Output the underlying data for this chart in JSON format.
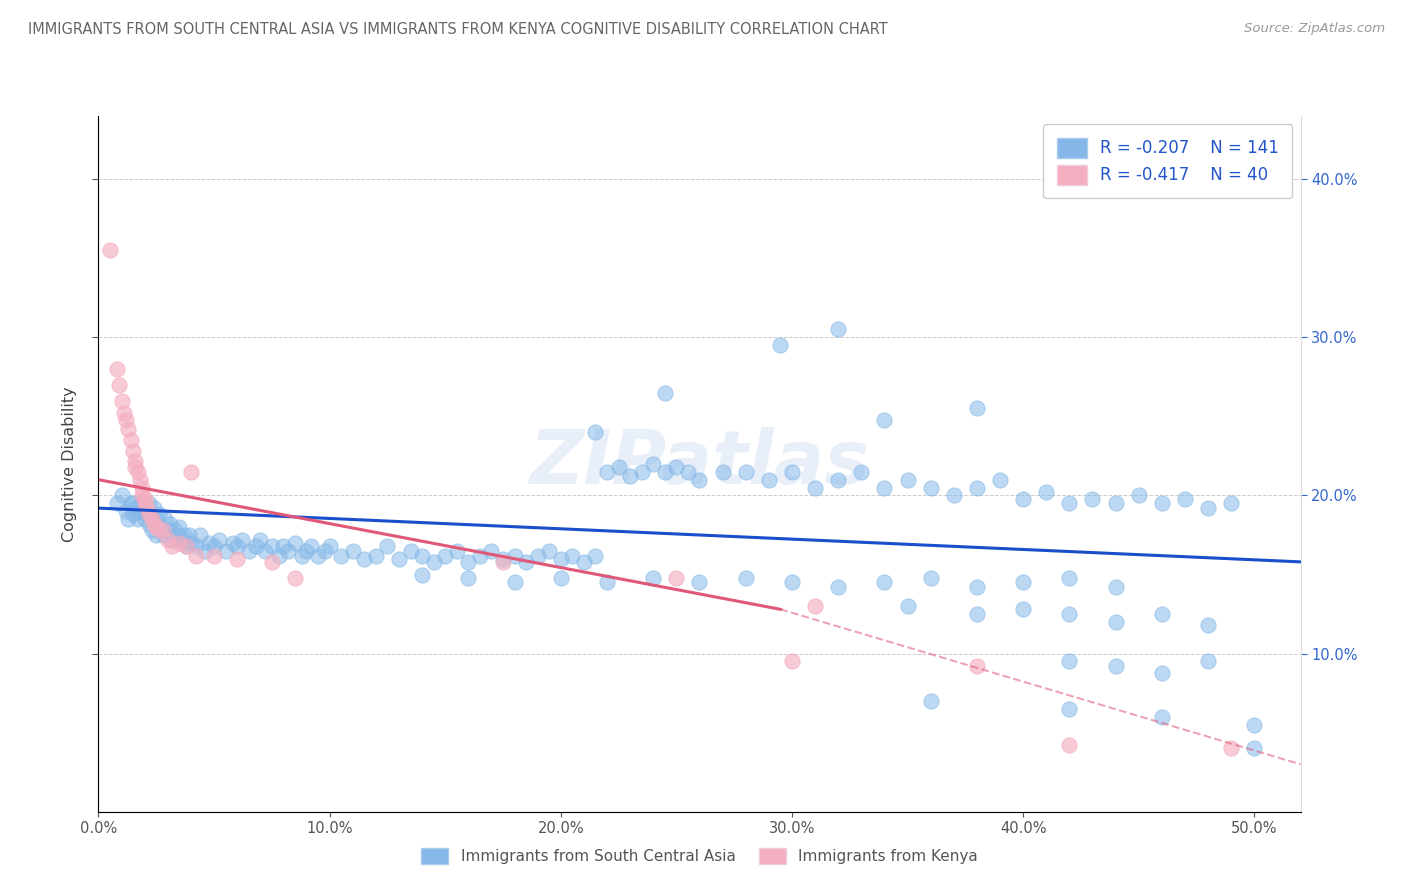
{
  "title": "IMMIGRANTS FROM SOUTH CENTRAL ASIA VS IMMIGRANTS FROM KENYA COGNITIVE DISABILITY CORRELATION CHART",
  "source": "Source: ZipAtlas.com",
  "ylabel": "Cognitive Disability",
  "right_yticks": [
    "40.0%",
    "30.0%",
    "20.0%",
    "10.0%"
  ],
  "right_ytick_vals": [
    0.4,
    0.3,
    0.2,
    0.1
  ],
  "xlim": [
    0.0,
    0.52
  ],
  "ylim": [
    0.0,
    0.44
  ],
  "legend_r1": "R = -0.207",
  "legend_n1": "N = 141",
  "legend_r2": "R = -0.417",
  "legend_n2": "N = 40",
  "blue_color": "#85b8e8",
  "pink_color": "#f4aec0",
  "blue_line_color": "#1a4fcc",
  "pink_line_color": "#e05878",
  "watermark_text": "ZIPatlas",
  "scatter_blue": [
    [
      0.008,
      0.195
    ],
    [
      0.01,
      0.2
    ],
    [
      0.012,
      0.19
    ],
    [
      0.013,
      0.185
    ],
    [
      0.014,
      0.195
    ],
    [
      0.015,
      0.188
    ],
    [
      0.015,
      0.195
    ],
    [
      0.016,
      0.192
    ],
    [
      0.017,
      0.185
    ],
    [
      0.018,
      0.19
    ],
    [
      0.019,
      0.196
    ],
    [
      0.02,
      0.185
    ],
    [
      0.02,
      0.193
    ],
    [
      0.021,
      0.188
    ],
    [
      0.022,
      0.182
    ],
    [
      0.022,
      0.195
    ],
    [
      0.023,
      0.185
    ],
    [
      0.023,
      0.178
    ],
    [
      0.024,
      0.192
    ],
    [
      0.025,
      0.185
    ],
    [
      0.025,
      0.175
    ],
    [
      0.026,
      0.188
    ],
    [
      0.027,
      0.18
    ],
    [
      0.028,
      0.175
    ],
    [
      0.029,
      0.185
    ],
    [
      0.03,
      0.178
    ],
    [
      0.031,
      0.182
    ],
    [
      0.032,
      0.172
    ],
    [
      0.033,
      0.178
    ],
    [
      0.034,
      0.175
    ],
    [
      0.035,
      0.18
    ],
    [
      0.036,
      0.172
    ],
    [
      0.037,
      0.175
    ],
    [
      0.038,
      0.168
    ],
    [
      0.039,
      0.175
    ],
    [
      0.04,
      0.17
    ],
    [
      0.042,
      0.168
    ],
    [
      0.044,
      0.175
    ],
    [
      0.046,
      0.165
    ],
    [
      0.048,
      0.17
    ],
    [
      0.05,
      0.168
    ],
    [
      0.052,
      0.172
    ],
    [
      0.055,
      0.165
    ],
    [
      0.058,
      0.17
    ],
    [
      0.06,
      0.168
    ],
    [
      0.062,
      0.172
    ],
    [
      0.065,
      0.165
    ],
    [
      0.068,
      0.168
    ],
    [
      0.07,
      0.172
    ],
    [
      0.072,
      0.165
    ],
    [
      0.075,
      0.168
    ],
    [
      0.078,
      0.162
    ],
    [
      0.08,
      0.168
    ],
    [
      0.082,
      0.165
    ],
    [
      0.085,
      0.17
    ],
    [
      0.088,
      0.162
    ],
    [
      0.09,
      0.165
    ],
    [
      0.092,
      0.168
    ],
    [
      0.095,
      0.162
    ],
    [
      0.098,
      0.165
    ],
    [
      0.1,
      0.168
    ],
    [
      0.105,
      0.162
    ],
    [
      0.11,
      0.165
    ],
    [
      0.115,
      0.16
    ],
    [
      0.12,
      0.162
    ],
    [
      0.125,
      0.168
    ],
    [
      0.13,
      0.16
    ],
    [
      0.135,
      0.165
    ],
    [
      0.14,
      0.162
    ],
    [
      0.145,
      0.158
    ],
    [
      0.15,
      0.162
    ],
    [
      0.155,
      0.165
    ],
    [
      0.16,
      0.158
    ],
    [
      0.165,
      0.162
    ],
    [
      0.17,
      0.165
    ],
    [
      0.175,
      0.16
    ],
    [
      0.18,
      0.162
    ],
    [
      0.185,
      0.158
    ],
    [
      0.19,
      0.162
    ],
    [
      0.195,
      0.165
    ],
    [
      0.2,
      0.16
    ],
    [
      0.205,
      0.162
    ],
    [
      0.21,
      0.158
    ],
    [
      0.215,
      0.162
    ],
    [
      0.22,
      0.215
    ],
    [
      0.225,
      0.218
    ],
    [
      0.23,
      0.212
    ],
    [
      0.235,
      0.215
    ],
    [
      0.24,
      0.22
    ],
    [
      0.245,
      0.215
    ],
    [
      0.25,
      0.218
    ],
    [
      0.255,
      0.215
    ],
    [
      0.26,
      0.21
    ],
    [
      0.27,
      0.215
    ],
    [
      0.28,
      0.215
    ],
    [
      0.29,
      0.21
    ],
    [
      0.3,
      0.215
    ],
    [
      0.31,
      0.205
    ],
    [
      0.32,
      0.21
    ],
    [
      0.33,
      0.215
    ],
    [
      0.34,
      0.205
    ],
    [
      0.35,
      0.21
    ],
    [
      0.36,
      0.205
    ],
    [
      0.37,
      0.2
    ],
    [
      0.38,
      0.205
    ],
    [
      0.39,
      0.21
    ],
    [
      0.4,
      0.198
    ],
    [
      0.41,
      0.202
    ],
    [
      0.42,
      0.195
    ],
    [
      0.43,
      0.198
    ],
    [
      0.44,
      0.195
    ],
    [
      0.45,
      0.2
    ],
    [
      0.46,
      0.195
    ],
    [
      0.47,
      0.198
    ],
    [
      0.48,
      0.192
    ],
    [
      0.49,
      0.195
    ],
    [
      0.295,
      0.295
    ],
    [
      0.32,
      0.305
    ],
    [
      0.245,
      0.265
    ],
    [
      0.38,
      0.255
    ],
    [
      0.215,
      0.24
    ],
    [
      0.34,
      0.248
    ],
    [
      0.14,
      0.15
    ],
    [
      0.16,
      0.148
    ],
    [
      0.18,
      0.145
    ],
    [
      0.2,
      0.148
    ],
    [
      0.22,
      0.145
    ],
    [
      0.24,
      0.148
    ],
    [
      0.26,
      0.145
    ],
    [
      0.28,
      0.148
    ],
    [
      0.3,
      0.145
    ],
    [
      0.32,
      0.142
    ],
    [
      0.34,
      0.145
    ],
    [
      0.36,
      0.148
    ],
    [
      0.38,
      0.142
    ],
    [
      0.4,
      0.145
    ],
    [
      0.42,
      0.148
    ],
    [
      0.44,
      0.142
    ],
    [
      0.35,
      0.13
    ],
    [
      0.38,
      0.125
    ],
    [
      0.4,
      0.128
    ],
    [
      0.42,
      0.125
    ],
    [
      0.44,
      0.12
    ],
    [
      0.46,
      0.125
    ],
    [
      0.48,
      0.118
    ],
    [
      0.42,
      0.095
    ],
    [
      0.44,
      0.092
    ],
    [
      0.46,
      0.088
    ],
    [
      0.48,
      0.095
    ],
    [
      0.36,
      0.07
    ],
    [
      0.42,
      0.065
    ],
    [
      0.46,
      0.06
    ],
    [
      0.5,
      0.04
    ],
    [
      0.5,
      0.055
    ]
  ],
  "scatter_pink": [
    [
      0.005,
      0.355
    ],
    [
      0.008,
      0.28
    ],
    [
      0.009,
      0.27
    ],
    [
      0.01,
      0.26
    ],
    [
      0.011,
      0.252
    ],
    [
      0.012,
      0.248
    ],
    [
      0.013,
      0.242
    ],
    [
      0.014,
      0.235
    ],
    [
      0.015,
      0.228
    ],
    [
      0.016,
      0.222
    ],
    [
      0.016,
      0.218
    ],
    [
      0.017,
      0.215
    ],
    [
      0.018,
      0.21
    ],
    [
      0.019,
      0.205
    ],
    [
      0.019,
      0.2
    ],
    [
      0.02,
      0.198
    ],
    [
      0.02,
      0.195
    ],
    [
      0.021,
      0.192
    ],
    [
      0.022,
      0.188
    ],
    [
      0.023,
      0.185
    ],
    [
      0.024,
      0.182
    ],
    [
      0.025,
      0.18
    ],
    [
      0.026,
      0.178
    ],
    [
      0.028,
      0.178
    ],
    [
      0.03,
      0.172
    ],
    [
      0.032,
      0.168
    ],
    [
      0.035,
      0.17
    ],
    [
      0.038,
      0.168
    ],
    [
      0.042,
      0.162
    ],
    [
      0.05,
      0.162
    ],
    [
      0.06,
      0.16
    ],
    [
      0.075,
      0.158
    ],
    [
      0.04,
      0.215
    ],
    [
      0.085,
      0.148
    ],
    [
      0.175,
      0.158
    ],
    [
      0.25,
      0.148
    ],
    [
      0.31,
      0.13
    ],
    [
      0.3,
      0.095
    ],
    [
      0.38,
      0.092
    ],
    [
      0.42,
      0.042
    ],
    [
      0.49,
      0.04
    ]
  ],
  "blue_line": [
    [
      0.0,
      0.192
    ],
    [
      0.52,
      0.158
    ]
  ],
  "pink_line_solid": [
    [
      0.0,
      0.21
    ],
    [
      0.295,
      0.128
    ]
  ],
  "pink_line_dash": [
    [
      0.295,
      0.128
    ],
    [
      0.52,
      0.03
    ]
  ]
}
